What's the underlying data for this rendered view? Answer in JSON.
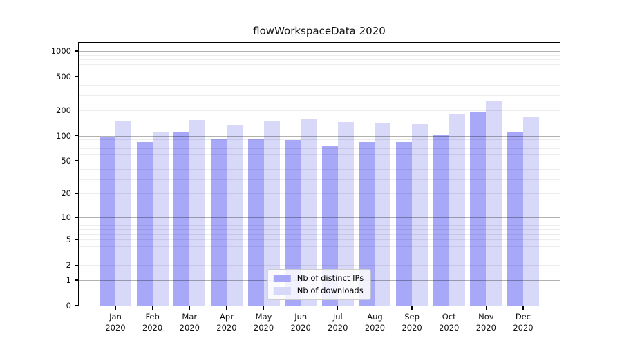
{
  "chart_data": {
    "type": "bar",
    "title": "flowWorkspaceData 2020",
    "categories": [
      "Jan",
      "Feb",
      "Mar",
      "Apr",
      "May",
      "Jun",
      "Jul",
      "Aug",
      "Sep",
      "Oct",
      "Nov",
      "Dec"
    ],
    "category_year": "2020",
    "series": [
      {
        "name": "Nb of distinct IPs",
        "color": "#a8a8f8",
        "values": [
          97,
          83,
          108,
          90,
          92,
          88,
          76,
          84,
          83,
          103,
          189,
          110
        ]
      },
      {
        "name": "Nb of downloads",
        "color": "#d8d8f8",
        "values": [
          150,
          110,
          153,
          133,
          150,
          157,
          145,
          141,
          139,
          182,
          259,
          168
        ]
      }
    ],
    "y_axis": {
      "ticks": [
        0,
        1,
        2,
        5,
        10,
        20,
        50,
        100,
        200,
        500,
        1000
      ],
      "scale": "symlog (log10 of value+1)",
      "major_gridlines": [
        1,
        10,
        100,
        1000
      ]
    },
    "xlabel": "",
    "ylabel": "",
    "legend": {
      "position": "lower center",
      "entries": [
        "Nb of distinct IPs",
        "Nb of downloads"
      ]
    },
    "grid": true
  },
  "colors": {
    "background": "#ffffff",
    "axis_border": "#000000",
    "text": "#111111",
    "major_grid": "rgba(0,0,0,0.30)",
    "minor_grid": "rgba(0,0,0,0.075)",
    "legend_border": "#cccccc"
  }
}
